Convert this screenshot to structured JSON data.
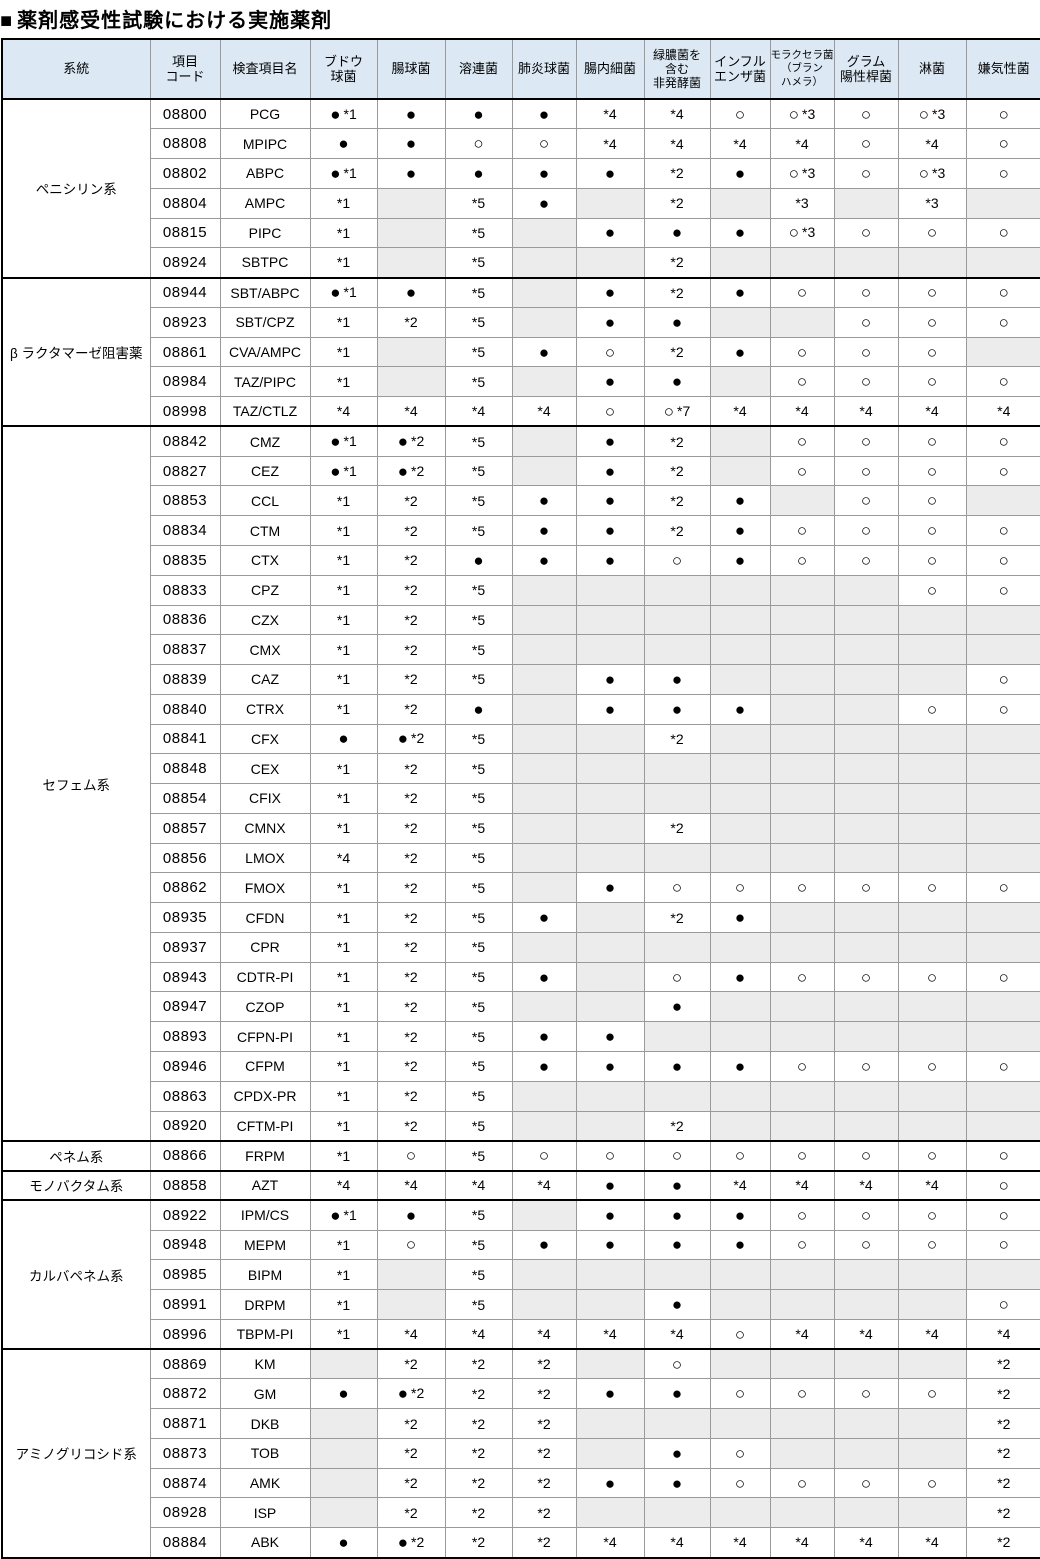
{
  "title": {
    "bullet": "■",
    "text": "薬剤感受性試験における実施薬剤"
  },
  "colors": {
    "header_bg": "#dce9f5",
    "empty_cell_bg": "#ececec",
    "grid_line": "#9a9a9a",
    "frame": "#000000"
  },
  "symbols": {
    "implemented": "●",
    "partially": "○",
    "notes_seen": [
      "*1",
      "*2",
      "*3",
      "*4",
      "*5",
      "*7"
    ]
  },
  "table": {
    "columns": [
      {
        "key": "group",
        "label": "系統"
      },
      {
        "key": "item-code",
        "label": "項目\nコード"
      },
      {
        "key": "item-name",
        "label": "検査項目名"
      },
      {
        "key": "staphylococcus",
        "label": "ブドウ\n球菌"
      },
      {
        "key": "enterococcus",
        "label": "腸球菌"
      },
      {
        "key": "streptococcus",
        "label": "溶連菌"
      },
      {
        "key": "pneumococcus",
        "label": "肺炎球菌"
      },
      {
        "key": "enterobacteria",
        "label": "腸内細菌"
      },
      {
        "key": "nonfermenters",
        "label": "緑膿菌を\n含む\n非発酵菌"
      },
      {
        "key": "haemophilus-influenzae",
        "label": "インフル\nエンザ菌"
      },
      {
        "key": "moraxella",
        "label": "モラクセラ菌\n（ブラン\nハメラ）"
      },
      {
        "key": "gram-positive-rods",
        "label": "グラム\n陽性桿菌"
      },
      {
        "key": "gonococcus",
        "label": "淋菌"
      },
      {
        "key": "anaerobes",
        "label": "嫌気性菌"
      }
    ],
    "groups": [
      {
        "label": "ペニシリン系",
        "rows": [
          {
            "code": "08800",
            "name": "PCG",
            "cells": [
              "●*1",
              "●",
              "●",
              "●",
              "*4",
              "*4",
              "○",
              "○*3",
              "○",
              "○*3",
              "○"
            ]
          },
          {
            "code": "08808",
            "name": "MPIPC",
            "cells": [
              "●",
              "●",
              "○",
              "○",
              "*4",
              "*4",
              "*4",
              "*4",
              "○",
              "*4",
              "○"
            ]
          },
          {
            "code": "08802",
            "name": "ABPC",
            "cells": [
              "●*1",
              "●",
              "●",
              "●",
              "●",
              "*2",
              "●",
              "○*3",
              "○",
              "○*3",
              "○"
            ]
          },
          {
            "code": "08804",
            "name": "AMPC",
            "cells": [
              "*1",
              "",
              "*5",
              "●",
              "",
              "*2",
              "",
              "*3",
              "",
              "*3",
              ""
            ]
          },
          {
            "code": "08815",
            "name": "PIPC",
            "cells": [
              "*1",
              "",
              "*5",
              "",
              "●",
              "●",
              "●",
              "○*3",
              "○",
              "○",
              "○"
            ]
          },
          {
            "code": "08924",
            "name": "SBTPC",
            "cells": [
              "*1",
              "",
              "*5",
              "",
              "",
              "*2",
              "",
              "",
              "",
              "",
              ""
            ]
          }
        ]
      },
      {
        "label": "β ラクタマーゼ阻害薬",
        "rows": [
          {
            "code": "08944",
            "name": "SBT/ABPC",
            "cells": [
              "●*1",
              "●",
              "*5",
              "",
              "●",
              "*2",
              "●",
              "○",
              "○",
              "○",
              "○"
            ]
          },
          {
            "code": "08923",
            "name": "SBT/CPZ",
            "cells": [
              "*1",
              "*2",
              "*5",
              "",
              "●",
              "●",
              "",
              "",
              "○",
              "○",
              "○"
            ]
          },
          {
            "code": "08861",
            "name": "CVA/AMPC",
            "cells": [
              "*1",
              "",
              "*5",
              "●",
              "○",
              "*2",
              "●",
              "○",
              "○",
              "○",
              ""
            ]
          },
          {
            "code": "08984",
            "name": "TAZ/PIPC",
            "cells": [
              "*1",
              "",
              "*5",
              "",
              "●",
              "●",
              "",
              "○",
              "○",
              "○",
              "○"
            ]
          },
          {
            "code": "08998",
            "name": "TAZ/CTLZ",
            "cells": [
              "*4",
              "*4",
              "*4",
              "*4",
              "○",
              "○*7",
              "*4",
              "*4",
              "*4",
              "*4",
              "*4"
            ]
          }
        ]
      },
      {
        "label": "セフェム系",
        "rows": [
          {
            "code": "08842",
            "name": "CMZ",
            "cells": [
              "●*1",
              "●*2",
              "*5",
              "",
              "●",
              "*2",
              "",
              "○",
              "○",
              "○",
              "○"
            ]
          },
          {
            "code": "08827",
            "name": "CEZ",
            "cells": [
              "●*1",
              "●*2",
              "*5",
              "",
              "●",
              "*2",
              "",
              "○",
              "○",
              "○",
              "○"
            ]
          },
          {
            "code": "08853",
            "name": "CCL",
            "cells": [
              "*1",
              "*2",
              "*5",
              "●",
              "●",
              "*2",
              "●",
              "",
              "○",
              "○",
              ""
            ]
          },
          {
            "code": "08834",
            "name": "CTM",
            "cells": [
              "*1",
              "*2",
              "*5",
              "●",
              "●",
              "*2",
              "●",
              "○",
              "○",
              "○",
              "○"
            ]
          },
          {
            "code": "08835",
            "name": "CTX",
            "cells": [
              "*1",
              "*2",
              "●",
              "●",
              "●",
              "○",
              "●",
              "○",
              "○",
              "○",
              "○"
            ]
          },
          {
            "code": "08833",
            "name": "CPZ",
            "cells": [
              "*1",
              "*2",
              "*5",
              "",
              "",
              "",
              "",
              "",
              "",
              "○",
              "○"
            ]
          },
          {
            "code": "08836",
            "name": "CZX",
            "cells": [
              "*1",
              "*2",
              "*5",
              "",
              "",
              "",
              "",
              "",
              "",
              "",
              ""
            ]
          },
          {
            "code": "08837",
            "name": "CMX",
            "cells": [
              "*1",
              "*2",
              "*5",
              "",
              "",
              "",
              "",
              "",
              "",
              "",
              ""
            ]
          },
          {
            "code": "08839",
            "name": "CAZ",
            "cells": [
              "*1",
              "*2",
              "*5",
              "",
              "●",
              "●",
              "",
              "",
              "",
              "",
              "○"
            ]
          },
          {
            "code": "08840",
            "name": "CTRX",
            "cells": [
              "*1",
              "*2",
              "●",
              "",
              "●",
              "●",
              "●",
              "",
              "",
              "○",
              "○"
            ]
          },
          {
            "code": "08841",
            "name": "CFX",
            "cells": [
              "●",
              "●*2",
              "*5",
              "",
              "",
              "*2",
              "",
              "",
              "",
              "",
              ""
            ]
          },
          {
            "code": "08848",
            "name": "CEX",
            "cells": [
              "*1",
              "*2",
              "*5",
              "",
              "",
              "",
              "",
              "",
              "",
              "",
              ""
            ]
          },
          {
            "code": "08854",
            "name": "CFIX",
            "cells": [
              "*1",
              "*2",
              "*5",
              "",
              "",
              "",
              "",
              "",
              "",
              "",
              ""
            ]
          },
          {
            "code": "08857",
            "name": "CMNX",
            "cells": [
              "*1",
              "*2",
              "*5",
              "",
              "",
              "*2",
              "",
              "",
              "",
              "",
              ""
            ]
          },
          {
            "code": "08856",
            "name": "LMOX",
            "cells": [
              "*4",
              "*2",
              "*5",
              "",
              "",
              "",
              "",
              "",
              "",
              "",
              ""
            ]
          },
          {
            "code": "08862",
            "name": "FMOX",
            "cells": [
              "*1",
              "*2",
              "*5",
              "",
              "●",
              "○",
              "○",
              "○",
              "○",
              "○",
              "○"
            ]
          },
          {
            "code": "08935",
            "name": "CFDN",
            "cells": [
              "*1",
              "*2",
              "*5",
              "●",
              "",
              "*2",
              "●",
              "",
              "",
              "",
              ""
            ]
          },
          {
            "code": "08937",
            "name": "CPR",
            "cells": [
              "*1",
              "*2",
              "*5",
              "",
              "",
              "",
              "",
              "",
              "",
              "",
              ""
            ]
          },
          {
            "code": "08943",
            "name": "CDTR-PI",
            "cells": [
              "*1",
              "*2",
              "*5",
              "●",
              "",
              "○",
              "●",
              "○",
              "○",
              "○",
              "○"
            ]
          },
          {
            "code": "08947",
            "name": "CZOP",
            "cells": [
              "*1",
              "*2",
              "*5",
              "",
              "",
              "●",
              "",
              "",
              "",
              "",
              ""
            ]
          },
          {
            "code": "08893",
            "name": "CFPN-PI",
            "cells": [
              "*1",
              "*2",
              "*5",
              "●",
              "●",
              "",
              "",
              "",
              "",
              "",
              ""
            ]
          },
          {
            "code": "08946",
            "name": "CFPM",
            "cells": [
              "*1",
              "*2",
              "*5",
              "●",
              "●",
              "●",
              "●",
              "○",
              "○",
              "○",
              "○"
            ]
          },
          {
            "code": "08863",
            "name": "CPDX-PR",
            "cells": [
              "*1",
              "*2",
              "*5",
              "",
              "",
              "",
              "",
              "",
              "",
              "",
              ""
            ]
          },
          {
            "code": "08920",
            "name": "CFTM-PI",
            "cells": [
              "*1",
              "*2",
              "*5",
              "",
              "",
              "*2",
              "",
              "",
              "",
              "",
              ""
            ]
          }
        ]
      },
      {
        "label": "ペネム系",
        "rows": [
          {
            "code": "08866",
            "name": "FRPM",
            "cells": [
              "*1",
              "○",
              "*5",
              "○",
              "○",
              "○",
              "○",
              "○",
              "○",
              "○",
              "○"
            ]
          }
        ]
      },
      {
        "label": "モノバクタム系",
        "rows": [
          {
            "code": "08858",
            "name": "AZT",
            "cells": [
              "*4",
              "*4",
              "*4",
              "*4",
              "●",
              "●",
              "*4",
              "*4",
              "*4",
              "*4",
              "○"
            ]
          }
        ]
      },
      {
        "label": "カルバペネム系",
        "rows": [
          {
            "code": "08922",
            "name": "IPM/CS",
            "cells": [
              "●*1",
              "●",
              "*5",
              "",
              "●",
              "●",
              "●",
              "○",
              "○",
              "○",
              "○"
            ]
          },
          {
            "code": "08948",
            "name": "MEPM",
            "cells": [
              "*1",
              "○",
              "*5",
              "●",
              "●",
              "●",
              "●",
              "○",
              "○",
              "○",
              "○"
            ]
          },
          {
            "code": "08985",
            "name": "BIPM",
            "cells": [
              "*1",
              "",
              "*5",
              "",
              "",
              "",
              "",
              "",
              "",
              "",
              ""
            ]
          },
          {
            "code": "08991",
            "name": "DRPM",
            "cells": [
              "*1",
              "",
              "*5",
              "",
              "",
              "●",
              "",
              "",
              "",
              "",
              "○"
            ]
          },
          {
            "code": "08996",
            "name": "TBPM-PI",
            "cells": [
              "*1",
              "*4",
              "*4",
              "*4",
              "*4",
              "*4",
              "○",
              "*4",
              "*4",
              "*4",
              "*4"
            ]
          }
        ]
      },
      {
        "label": "アミノグリコシド系",
        "rows": [
          {
            "code": "08869",
            "name": "KM",
            "cells": [
              "",
              "*2",
              "*2",
              "*2",
              "",
              "○",
              "",
              "",
              "",
              "",
              "*2"
            ]
          },
          {
            "code": "08872",
            "name": "GM",
            "cells": [
              "●",
              "●*2",
              "*2",
              "*2",
              "●",
              "●",
              "○",
              "○",
              "○",
              "○",
              "*2"
            ]
          },
          {
            "code": "08871",
            "name": "DKB",
            "cells": [
              "",
              "*2",
              "*2",
              "*2",
              "",
              "",
              "",
              "",
              "",
              "",
              "*2"
            ]
          },
          {
            "code": "08873",
            "name": "TOB",
            "cells": [
              "",
              "*2",
              "*2",
              "*2",
              "",
              "●",
              "○",
              "",
              "",
              "",
              "*2"
            ]
          },
          {
            "code": "08874",
            "name": "AMK",
            "cells": [
              "",
              "*2",
              "*2",
              "*2",
              "●",
              "●",
              "○",
              "○",
              "○",
              "○",
              "*2"
            ]
          },
          {
            "code": "08928",
            "name": "ISP",
            "cells": [
              "",
              "*2",
              "*2",
              "*2",
              "",
              "",
              "",
              "",
              "",
              "",
              "*2"
            ]
          },
          {
            "code": "08884",
            "name": "ABK",
            "cells": [
              "●",
              "●*2",
              "*2",
              "*2",
              "*4",
              "*4",
              "*4",
              "*4",
              "*4",
              "*4",
              "*2"
            ]
          }
        ]
      }
    ]
  }
}
